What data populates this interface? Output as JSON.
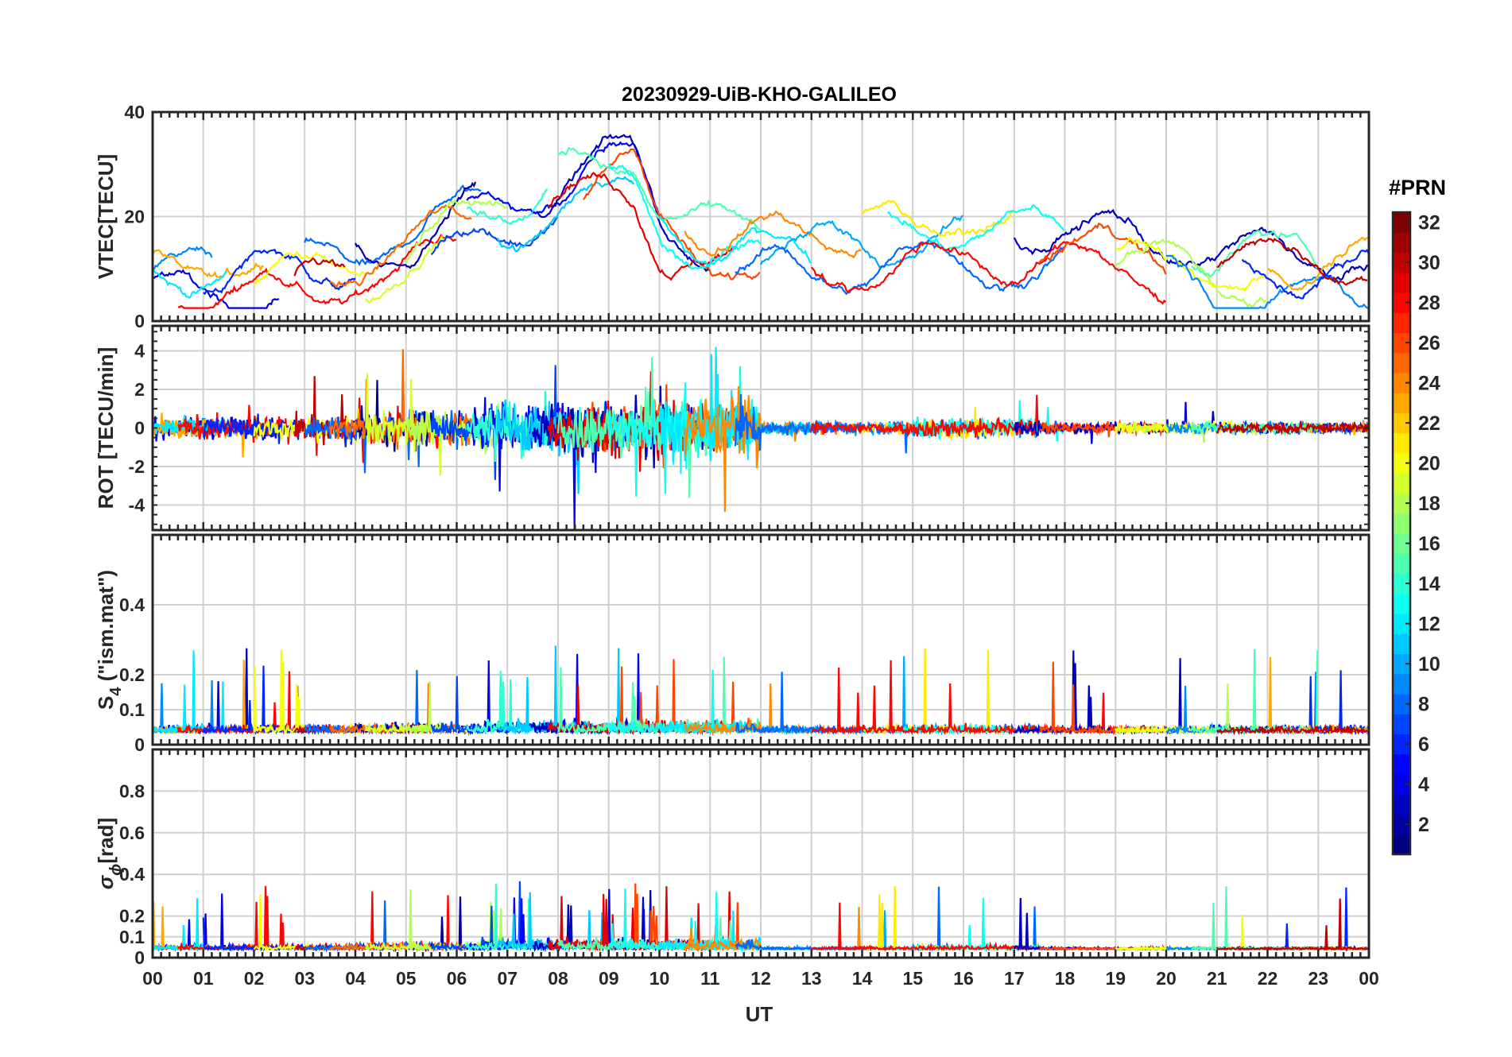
{
  "title": "20230929-UiB-KHO-GALILEO",
  "xlabel": "UT",
  "x_ticks": [
    "00",
    "01",
    "02",
    "03",
    "04",
    "05",
    "06",
    "07",
    "08",
    "09",
    "10",
    "11",
    "12",
    "13",
    "14",
    "15",
    "16",
    "17",
    "18",
    "19",
    "20",
    "21",
    "22",
    "23",
    "00"
  ],
  "colorbar": {
    "title": "#PRN",
    "range": [
      1,
      32
    ],
    "ticks": [
      "2",
      "4",
      "6",
      "8",
      "10",
      "12",
      "14",
      "16",
      "18",
      "20",
      "22",
      "24",
      "26",
      "28",
      "30",
      "32"
    ],
    "colormap": "jet"
  },
  "chart_data": [
    {
      "type": "line",
      "panel": "vtec",
      "ylabel": "VTEC[TECU]",
      "ylim": [
        0,
        40
      ],
      "yticks": [
        "0",
        "20",
        "40"
      ],
      "xlim": [
        0,
        24
      ],
      "grid": true,
      "series_description": "multiple GALILEO satellites (PRN 1-32), colour-coded by PRN"
    },
    {
      "type": "line",
      "panel": "rot",
      "ylabel": "ROT [TECU/min]",
      "ylim": [
        -5.3,
        5.3
      ],
      "yticks": [
        "-4",
        "-2",
        "0",
        "2",
        "4"
      ],
      "xlim": [
        0,
        24
      ],
      "grid": true
    },
    {
      "type": "line",
      "panel": "s4",
      "ylabel_main": "S",
      "ylabel_sub": "4",
      "ylabel_rest": " (\"ism.mat\")",
      "ylim": [
        0,
        0.6
      ],
      "yticks": [
        "0",
        "0.1",
        "0.2",
        "0.4"
      ],
      "xlim": [
        0,
        24
      ],
      "grid": true
    },
    {
      "type": "line",
      "panel": "sigma",
      "ylabel_main": "σ",
      "ylabel_sub": "ϕ",
      "ylabel_rest": "[rad]",
      "ylim": [
        0,
        1.0
      ],
      "yticks": [
        "0",
        "0.1",
        "0.2",
        "0.4",
        "0.6",
        "0.8"
      ],
      "xlim": [
        0,
        24
      ],
      "grid": true
    }
  ],
  "colors": {
    "axis": "#262626",
    "grid": "#d0d0d0"
  }
}
